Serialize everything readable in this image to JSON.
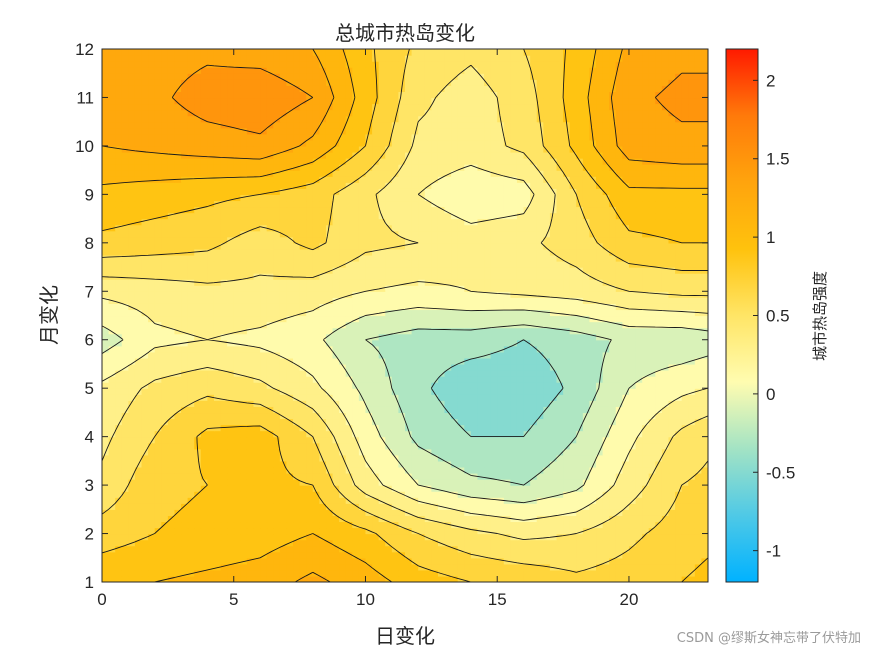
{
  "chart_data": {
    "type": "heatmap",
    "subtype": "filled-contour",
    "title": "总城市热岛变化",
    "xlabel": "日变化",
    "ylabel": "月变化",
    "xlim": [
      0,
      23
    ],
    "ylim": [
      1,
      12
    ],
    "xticks": [
      0,
      5,
      10,
      15,
      20
    ],
    "yticks": [
      1,
      2,
      3,
      4,
      5,
      6,
      7,
      8,
      9,
      10,
      11,
      12
    ],
    "colorbar": {
      "label": "城市热岛强度",
      "range": [
        -1.2,
        2.2
      ],
      "ticks": [
        -1,
        -0.5,
        0,
        0.5,
        1,
        1.5,
        2
      ],
      "tick_labels": [
        "-1",
        "-0.5",
        "0",
        "0.5",
        "1",
        "1.5",
        "2"
      ],
      "colors": [
        "#00b2ff",
        "#4fc9e6",
        "#a3e3c4",
        "#fffcb0",
        "#ffe566",
        "#ffc20d",
        "#ffa40d",
        "#ff7a0a",
        "#ff1a00"
      ]
    },
    "contour_levels": [
      -0.6,
      -0.4,
      -0.2,
      0,
      0.2,
      0.4,
      0.6,
      0.8,
      1.0,
      1.2,
      1.4
    ],
    "x": [
      0,
      2,
      4,
      6,
      8,
      10,
      12,
      14,
      16,
      18,
      20,
      22,
      23
    ],
    "y": [
      1,
      2,
      3,
      4,
      5,
      6,
      7,
      8,
      9,
      10,
      11,
      12
    ],
    "z": [
      [
        0.95,
        1.0,
        1.05,
        1.1,
        1.25,
        1.1,
        0.9,
        0.8,
        0.75,
        0.65,
        0.7,
        0.8,
        0.85
      ],
      [
        0.7,
        0.8,
        0.85,
        0.9,
        1.0,
        0.85,
        0.6,
        0.45,
        0.35,
        0.4,
        0.55,
        0.7,
        0.75
      ],
      [
        0.45,
        0.75,
        0.8,
        0.85,
        0.8,
        0.3,
        0.0,
        -0.15,
        -0.2,
        -0.05,
        0.3,
        0.6,
        0.65
      ],
      [
        0.35,
        0.6,
        0.85,
        0.9,
        0.6,
        0.1,
        -0.25,
        -0.4,
        -0.4,
        -0.2,
        0.15,
        0.45,
        0.55
      ],
      [
        0.25,
        0.45,
        0.55,
        0.45,
        0.25,
        -0.05,
        -0.35,
        -0.55,
        -0.55,
        -0.35,
        0.0,
        0.15,
        0.2
      ],
      [
        -0.1,
        0.15,
        0.2,
        0.15,
        0.05,
        -0.2,
        -0.3,
        -0.3,
        -0.4,
        -0.3,
        -0.15,
        -0.15,
        -0.1
      ],
      [
        0.25,
        0.3,
        0.35,
        0.35,
        0.3,
        0.2,
        0.15,
        0.2,
        0.25,
        0.3,
        0.4,
        0.45,
        0.45
      ],
      [
        0.75,
        0.7,
        0.65,
        0.5,
        0.65,
        0.45,
        0.4,
        0.3,
        0.35,
        0.5,
        0.75,
        0.8,
        0.8
      ],
      [
        0.95,
        0.9,
        0.85,
        0.8,
        0.7,
        0.45,
        0.2,
        0.05,
        0.1,
        0.6,
        0.95,
        0.95,
        0.95
      ],
      [
        1.2,
        1.25,
        1.3,
        1.35,
        1.15,
        0.8,
        0.35,
        0.3,
        0.45,
        0.85,
        1.3,
        1.35,
        1.35
      ],
      [
        1.2,
        1.35,
        1.5,
        1.55,
        1.4,
        0.9,
        0.45,
        0.3,
        0.5,
        0.9,
        1.35,
        1.45,
        1.45
      ],
      [
        1.2,
        1.3,
        1.35,
        1.3,
        1.2,
        0.85,
        0.55,
        0.45,
        0.6,
        0.85,
        1.25,
        1.35,
        1.35
      ]
    ]
  },
  "watermark": "CSDN @缪斯女神忘带了伏特加"
}
